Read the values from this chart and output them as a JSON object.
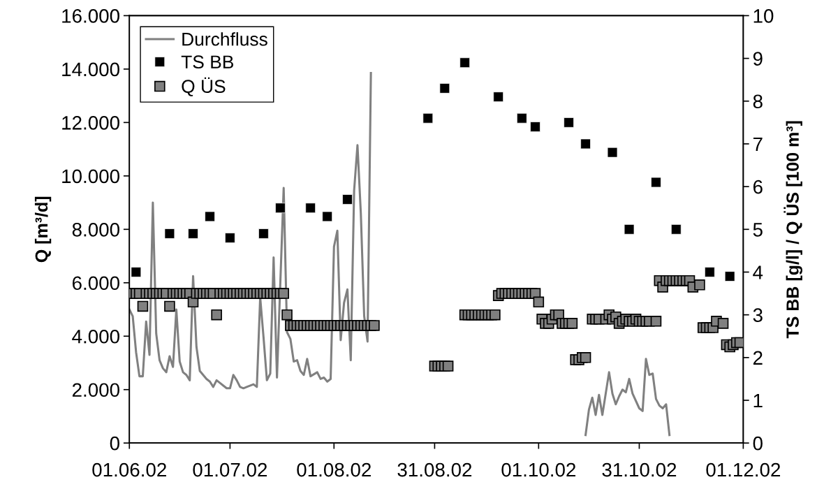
{
  "chart_data": {
    "type": "scatter",
    "ylabel": "Q [m³/d]",
    "y2label": "TS BB [g/l] / Q ÜS [100 m³]",
    "xlim": [
      "2002-06-01",
      "2002-12-01"
    ],
    "xticks": [
      {
        "value": "2002-06-01",
        "label": "01.06.02"
      },
      {
        "value": "2002-07-01",
        "label": "01.07.02"
      },
      {
        "value": "2002-08-01",
        "label": "01.08.02"
      },
      {
        "value": "2002-08-31",
        "label": "31.08.02"
      },
      {
        "value": "2002-10-01",
        "label": "01.10.02"
      },
      {
        "value": "2002-10-31",
        "label": "31.10.02"
      },
      {
        "value": "2002-12-01",
        "label": "01.12.02"
      }
    ],
    "ylim": [
      0,
      16000
    ],
    "yticks": [
      {
        "value": 0,
        "label": "0"
      },
      {
        "value": 2000,
        "label": "2.000"
      },
      {
        "value": 4000,
        "label": "4.000"
      },
      {
        "value": 6000,
        "label": "6.000"
      },
      {
        "value": 8000,
        "label": "8.000"
      },
      {
        "value": 10000,
        "label": "10.000"
      },
      {
        "value": 12000,
        "label": "12.000"
      },
      {
        "value": 14000,
        "label": "14.000"
      },
      {
        "value": 16000,
        "label": "16.000"
      }
    ],
    "y2lim": [
      0,
      10
    ],
    "y2ticks": [
      0,
      1,
      2,
      3,
      4,
      5,
      6,
      7,
      8,
      9,
      10
    ],
    "grid": false,
    "legend": "top left",
    "series": [
      {
        "name": "Durchfluss",
        "type": "line",
        "color": "#808080",
        "line_style": "solid",
        "marker": "none",
        "x": [
          "2002-06-01",
          "2002-06-02",
          "2002-06-03",
          "2002-06-04",
          "2002-06-05",
          "2002-06-06",
          "2002-06-07",
          "2002-06-08",
          "2002-06-09",
          "2002-06-10",
          "2002-06-11",
          "2002-06-12",
          "2002-06-13",
          "2002-06-14",
          "2002-06-15",
          "2002-06-16",
          "2002-06-17",
          "2002-06-18",
          "2002-06-19",
          "2002-06-20",
          "2002-06-21",
          "2002-06-22",
          "2002-06-24",
          "2002-06-25",
          "2002-06-26",
          "2002-06-27",
          "2002-06-28",
          "2002-06-29",
          "2002-06-30",
          "2002-07-01",
          "2002-07-02",
          "2002-07-03",
          "2002-07-04",
          "2002-07-05",
          "2002-07-06",
          "2002-07-08",
          "2002-07-09",
          "2002-07-10",
          "2002-07-11",
          "2002-07-12",
          "2002-07-13",
          "2002-07-14",
          "2002-07-15",
          "2002-07-17",
          "2002-07-18",
          "2002-07-19",
          "2002-07-20",
          "2002-07-21",
          "2002-07-22",
          "2002-07-23",
          "2002-07-24",
          "2002-07-25",
          "2002-07-27",
          "2002-07-28",
          "2002-07-29",
          "2002-07-30",
          "2002-07-31",
          "2002-08-01",
          "2002-08-02",
          "2002-08-03",
          "2002-08-04",
          "2002-08-05",
          "2002-08-06",
          "2002-08-07",
          "2002-08-08",
          "2002-08-09",
          "2002-08-10",
          "2002-08-11",
          "2002-08-12",
          "2002-08-20",
          "2002-10-15",
          "2002-10-16",
          "2002-10-17",
          "2002-10-18",
          "2002-10-19",
          "2002-10-20",
          "2002-10-22",
          "2002-10-23",
          "2002-10-24",
          "2002-10-25",
          "2002-10-26",
          "2002-10-27",
          "2002-10-28",
          "2002-10-29",
          "2002-10-31",
          "2002-11-01",
          "2002-11-02",
          "2002-11-03",
          "2002-11-04",
          "2002-11-05",
          "2002-11-06",
          "2002-11-07",
          "2002-11-08",
          "2002-11-09"
        ],
        "values": [
          5000,
          4750,
          3400,
          2500,
          2500,
          4550,
          3300,
          9000,
          4100,
          3100,
          2800,
          2650,
          3250,
          2850,
          5000,
          3050,
          2650,
          2550,
          2350,
          6250,
          3600,
          2700,
          2400,
          2300,
          2100,
          2350,
          2250,
          2150,
          2050,
          2050,
          2550,
          2350,
          2100,
          2050,
          2100,
          2200,
          2100,
          5450,
          3950,
          2350,
          2600,
          6950,
          2450,
          9550,
          4150,
          3900,
          3050,
          3100,
          2700,
          2550,
          3150,
          2500,
          2650,
          2400,
          2450,
          2300,
          2400,
          7350,
          7950,
          3850,
          5250,
          5750,
          3100,
          9450,
          11150,
          8600,
          4750,
          3800,
          13850,
          null,
          300,
          1250,
          1700,
          1050,
          1800,
          1050,
          2650,
          1850,
          1450,
          1750,
          2000,
          1900,
          2400,
          1850,
          1300,
          1200,
          3150,
          2550,
          2600,
          1650,
          1400,
          1300,
          1450,
          300
        ]
      },
      {
        "name": "TS BB",
        "axis": "y2",
        "color": "#000000",
        "marker": "square",
        "x": [
          "2002-06-03",
          "2002-06-13",
          "2002-06-20",
          "2002-06-25",
          "2002-07-01",
          "2002-07-11",
          "2002-07-16",
          "2002-07-25",
          "2002-07-30",
          "2002-08-05",
          "2002-08-29",
          "2002-09-03",
          "2002-09-09",
          "2002-09-19",
          "2002-09-26",
          "2002-09-30",
          "2002-10-10",
          "2002-10-15",
          "2002-10-23",
          "2002-10-28",
          "2002-11-05",
          "2002-11-11",
          "2002-11-21",
          "2002-11-27"
        ],
        "values": [
          4.0,
          4.9,
          4.9,
          5.3,
          4.8,
          4.9,
          5.5,
          5.5,
          5.3,
          5.7,
          7.6,
          8.3,
          8.9,
          8.1,
          7.6,
          7.4,
          7.5,
          7.0,
          6.8,
          5.0,
          6.1,
          5.0,
          4.0,
          3.9
        ]
      },
      {
        "name": "Q ÜS",
        "axis": "y2",
        "color": "#808080",
        "marker": "square",
        "x": [
          "2002-06-01",
          "2002-06-02",
          "2002-06-03",
          "2002-06-04",
          "2002-06-05",
          "2002-06-06",
          "2002-06-07",
          "2002-06-08",
          "2002-06-09",
          "2002-06-10",
          "2002-06-11",
          "2002-06-12",
          "2002-06-13",
          "2002-06-14",
          "2002-06-15",
          "2002-06-16",
          "2002-06-17",
          "2002-06-18",
          "2002-06-19",
          "2002-06-20",
          "2002-06-21",
          "2002-06-22",
          "2002-06-23",
          "2002-06-24",
          "2002-06-25",
          "2002-06-26",
          "2002-06-27",
          "2002-06-28",
          "2002-06-29",
          "2002-06-30",
          "2002-07-01",
          "2002-07-02",
          "2002-07-03",
          "2002-07-04",
          "2002-07-05",
          "2002-07-06",
          "2002-07-07",
          "2002-07-08",
          "2002-07-09",
          "2002-07-10",
          "2002-07-11",
          "2002-07-12",
          "2002-07-13",
          "2002-07-14",
          "2002-07-15",
          "2002-07-16",
          "2002-07-17",
          "2002-07-18",
          "2002-07-19",
          "2002-07-20",
          "2002-07-21",
          "2002-07-22",
          "2002-07-23",
          "2002-07-24",
          "2002-07-25",
          "2002-07-26",
          "2002-07-27",
          "2002-07-28",
          "2002-07-29",
          "2002-07-30",
          "2002-07-31",
          "2002-08-01",
          "2002-08-02",
          "2002-08-03",
          "2002-08-04",
          "2002-08-05",
          "2002-08-06",
          "2002-08-07",
          "2002-08-08",
          "2002-08-09",
          "2002-08-10",
          "2002-08-11",
          "2002-08-12",
          "2002-08-13",
          "2002-08-31",
          "2002-09-01",
          "2002-09-02",
          "2002-09-03",
          "2002-09-04",
          "2002-09-09",
          "2002-09-10",
          "2002-09-11",
          "2002-09-12",
          "2002-09-13",
          "2002-09-14",
          "2002-09-15",
          "2002-09-16",
          "2002-09-17",
          "2002-09-18",
          "2002-09-19",
          "2002-09-20",
          "2002-09-21",
          "2002-09-22",
          "2002-09-23",
          "2002-09-24",
          "2002-09-25",
          "2002-09-26",
          "2002-09-27",
          "2002-09-28",
          "2002-09-29",
          "2002-09-30",
          "2002-10-01",
          "2002-10-02",
          "2002-10-03",
          "2002-10-04",
          "2002-10-05",
          "2002-10-06",
          "2002-10-07",
          "2002-10-08",
          "2002-10-09",
          "2002-10-10",
          "2002-10-11",
          "2002-10-12",
          "2002-10-13",
          "2002-10-14",
          "2002-10-15",
          "2002-10-17",
          "2002-10-18",
          "2002-10-19",
          "2002-10-21",
          "2002-10-22",
          "2002-10-23",
          "2002-10-24",
          "2002-10-25",
          "2002-10-26",
          "2002-10-27",
          "2002-10-28",
          "2002-10-29",
          "2002-10-30",
          "2002-10-31",
          "2002-11-01",
          "2002-11-02",
          "2002-11-03",
          "2002-11-05",
          "2002-11-06",
          "2002-11-07",
          "2002-11-08",
          "2002-11-09",
          "2002-11-10",
          "2002-11-11",
          "2002-11-12",
          "2002-11-13",
          "2002-11-14",
          "2002-11-15",
          "2002-11-16",
          "2002-11-18",
          "2002-11-19",
          "2002-11-20",
          "2002-11-21",
          "2002-11-22",
          "2002-11-23",
          "2002-11-25",
          "2002-11-26",
          "2002-11-27",
          "2002-11-28",
          "2002-11-29",
          "2002-11-30"
        ],
        "values": [
          3.5,
          3.5,
          3.5,
          3.5,
          3.2,
          3.5,
          3.5,
          3.5,
          3.5,
          3.5,
          3.5,
          3.5,
          3.2,
          3.5,
          3.5,
          3.5,
          3.5,
          3.5,
          3.5,
          3.3,
          3.5,
          3.5,
          3.5,
          3.5,
          3.5,
          3.5,
          3.0,
          3.5,
          3.5,
          3.5,
          3.5,
          3.5,
          3.5,
          3.5,
          3.5,
          3.5,
          3.5,
          3.5,
          3.5,
          3.5,
          3.5,
          3.5,
          3.5,
          3.5,
          3.5,
          3.5,
          3.5,
          3.0,
          2.75,
          2.75,
          2.75,
          2.75,
          2.75,
          2.75,
          2.75,
          2.75,
          2.75,
          2.75,
          2.75,
          2.75,
          2.75,
          2.75,
          2.75,
          2.75,
          2.75,
          2.75,
          2.75,
          2.75,
          2.75,
          2.75,
          2.75,
          2.75,
          2.75,
          2.75,
          1.8,
          1.8,
          1.8,
          1.8,
          1.8,
          3.0,
          3.0,
          3.0,
          3.0,
          3.0,
          3.0,
          3.0,
          3.0,
          3.0,
          3.0,
          3.45,
          3.5,
          3.5,
          3.5,
          3.5,
          3.5,
          3.5,
          3.5,
          3.5,
          3.5,
          3.5,
          3.5,
          3.3,
          2.9,
          2.8,
          2.8,
          2.9,
          3.0,
          3.0,
          2.8,
          2.8,
          2.8,
          2.8,
          1.95,
          1.95,
          2.0,
          2.0,
          2.9,
          2.9,
          2.9,
          2.9,
          3.0,
          2.9,
          2.95,
          2.8,
          2.85,
          2.9,
          2.85,
          2.85,
          2.9,
          2.85,
          2.85,
          2.85,
          2.85,
          2.85,
          3.8,
          3.65,
          3.8,
          3.8,
          3.8,
          3.8,
          3.8,
          3.8,
          3.8,
          3.8,
          3.65,
          3.7,
          2.7,
          2.7,
          2.7,
          2.7,
          2.85,
          2.8,
          2.3,
          2.25,
          2.3,
          2.35,
          2.35
        ]
      }
    ]
  }
}
